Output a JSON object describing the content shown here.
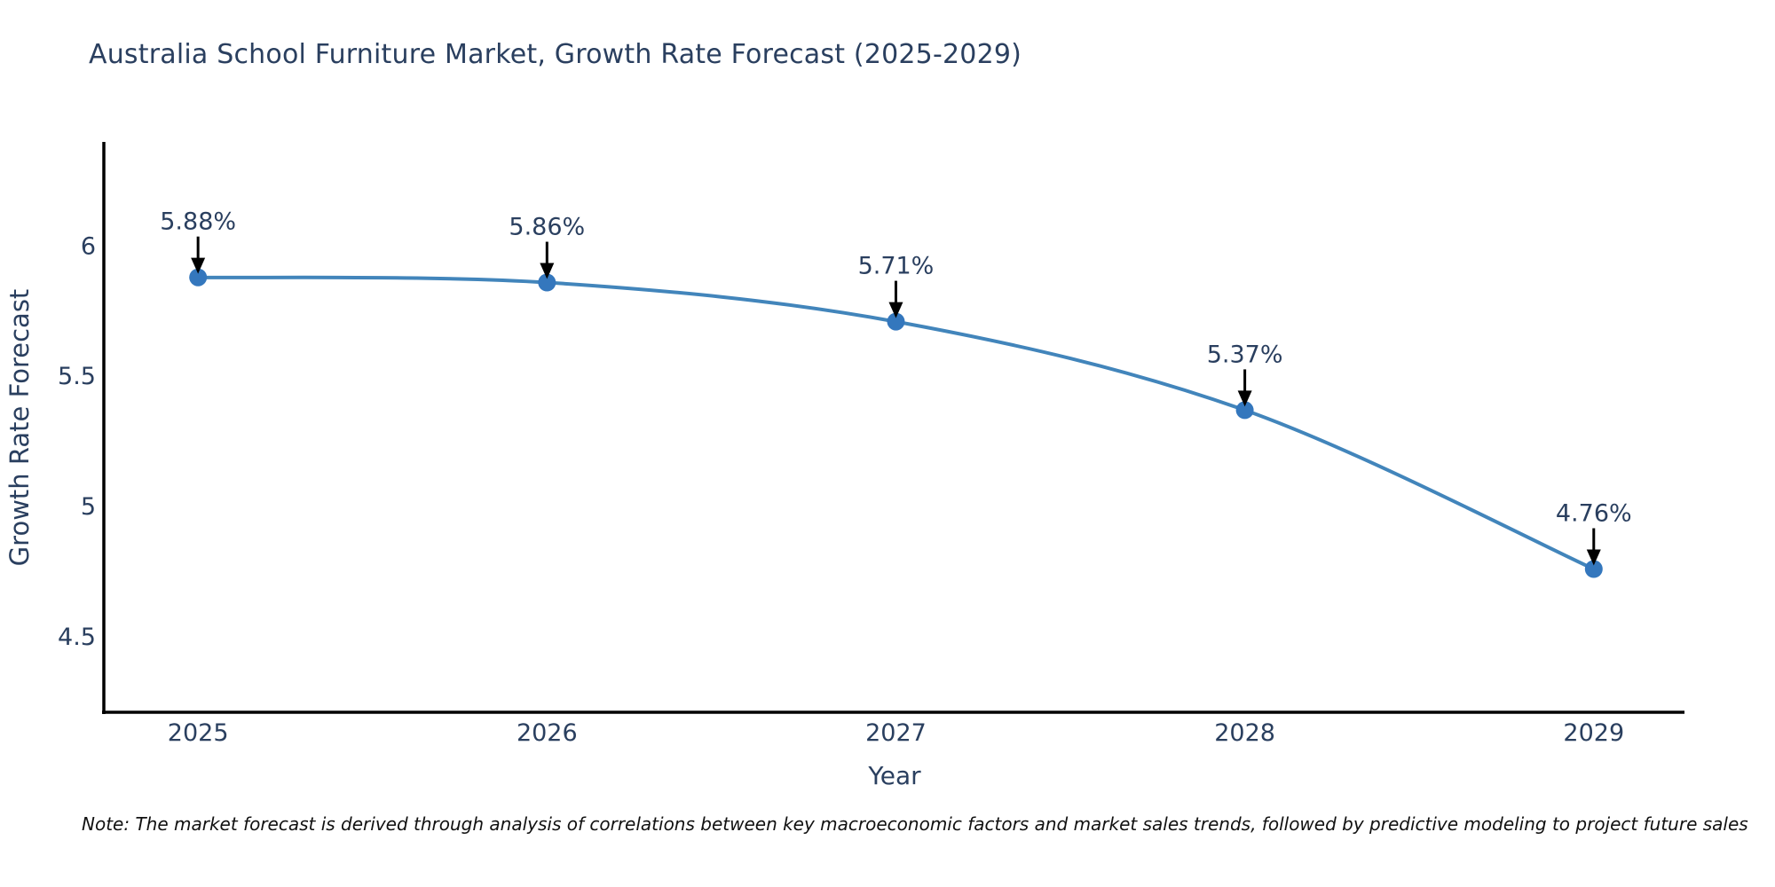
{
  "title": "Australia School Furniture Market, Growth Rate Forecast (2025-2029)",
  "note": "Note: The market forecast is derived through analysis of correlations between key macroeconomic factors and market sales trends, followed by predictive modeling to project future sales",
  "colors": {
    "line": "#4285bb",
    "marker": "#3477bd",
    "title_text": "#2a3f5f",
    "axis_text": "#2a3f5f",
    "axis_line": "#000000",
    "annotation_text": "#2a3f5f",
    "arrow": "#000000",
    "note_text": "#111111",
    "background": "#ffffff"
  },
  "chart_data": {
    "type": "line",
    "title": "Australia School Furniture Market, Growth Rate Forecast (2025-2029)",
    "xlabel": "Year",
    "ylabel": "Growth Rate Forecast",
    "x": [
      2025,
      2026,
      2027,
      2028,
      2029
    ],
    "categories": [
      "2025",
      "2026",
      "2027",
      "2028",
      "2029"
    ],
    "values": [
      5.88,
      5.86,
      5.71,
      5.37,
      4.76
    ],
    "annotations": [
      "5.88%",
      "5.86%",
      "5.71%",
      "5.37%",
      "4.76%"
    ],
    "series": [
      {
        "name": "Growth Rate Forecast",
        "values": [
          5.88,
          5.86,
          5.71,
          5.37,
          4.76
        ]
      }
    ],
    "yticks": [
      4.5,
      5,
      5.5,
      6
    ],
    "ytick_labels": [
      "4.5",
      "5",
      "5.5",
      "6"
    ],
    "ylim": [
      4.21,
      6.4
    ],
    "xlim": [
      2024.73,
      2029.26
    ],
    "grid": false,
    "legend": "none",
    "line_shape": "spline",
    "marker": "circle"
  }
}
